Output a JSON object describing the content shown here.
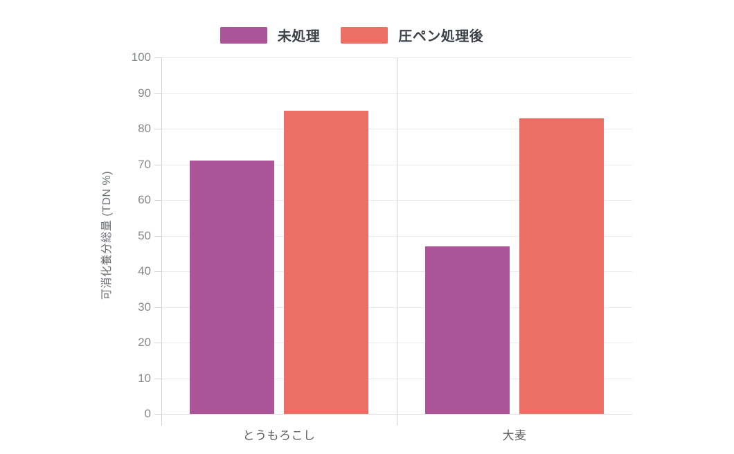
{
  "chart_data": {
    "type": "bar",
    "title": "",
    "categories": [
      "とうもろこし",
      "大麦"
    ],
    "series": [
      {
        "name": "未処理",
        "color": "#ac5498",
        "values": [
          71,
          47
        ]
      },
      {
        "name": "圧ペン処理後",
        "color": "#ed6e64",
        "values": [
          85,
          83
        ]
      }
    ],
    "xlabel": "",
    "ylabel": "可消化養分総量 (TDN %)",
    "ylim": [
      0,
      100
    ],
    "ytick_step": 10,
    "ytick_labels": [
      "0",
      "10",
      "20",
      "30",
      "40",
      "50",
      "60",
      "70",
      "80",
      "90",
      "100"
    ],
    "grid": true,
    "legend_position": "top"
  }
}
